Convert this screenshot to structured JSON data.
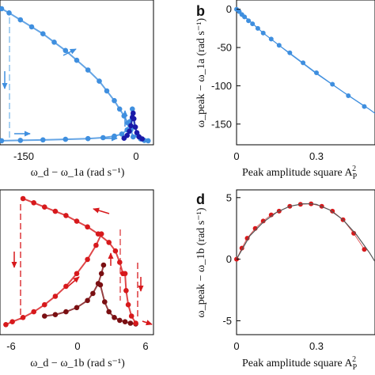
{
  "chart_data": [
    {
      "id": "a",
      "type": "line",
      "panel_label": "",
      "xlabel": "ω_d − ω_1a  (rad s⁻¹)",
      "ylabel": "",
      "xticks": [
        "-150",
        "0"
      ],
      "yticks": [],
      "xlim": [
        -175,
        25
      ],
      "ylim": [
        0,
        1
      ],
      "series": [
        {
          "color": "#3f8fdf",
          "role": "upper branch",
          "x": [
            -175,
            -165,
            -150,
            -135,
            -120,
            -105,
            -90,
            -75,
            -60,
            -45,
            -35,
            -25,
            -18,
            -12,
            -7,
            -3,
            0
          ],
          "y": [
            0.96,
            0.93,
            0.88,
            0.83,
            0.78,
            0.72,
            0.66,
            0.59,
            0.52,
            0.44,
            0.37,
            0.3,
            0.24,
            0.19,
            0.14,
            0.09,
            0.04
          ]
        },
        {
          "color": "#3f8fdf",
          "role": "lower branch",
          "x": [
            -175,
            -150,
            -120,
            -90,
            -60,
            -40,
            -25,
            -15,
            -8,
            -4,
            -1,
            2,
            6,
            10,
            15,
            20
          ],
          "y": [
            0.012,
            0.015,
            0.018,
            0.022,
            0.027,
            0.034,
            0.045,
            0.06,
            0.09,
            0.15,
            0.24,
            0.11,
            0.05,
            0.025,
            0.015,
            0.012
          ]
        },
        {
          "color": "#1a1aa8",
          "role": "resonance peak",
          "x": [
            -12,
            -8,
            -5,
            -3,
            -1,
            0,
            1,
            3,
            5,
            8,
            12
          ],
          "y": [
            0.03,
            0.05,
            0.08,
            0.12,
            0.18,
            0.21,
            0.17,
            0.11,
            0.07,
            0.04,
            0.025
          ]
        }
      ]
    },
    {
      "id": "b",
      "type": "scatter",
      "panel_label": "b",
      "xlabel": "Peak amplitude square A",
      "xlabel_sub": "P",
      "xlabel_sup": "2",
      "ylabel": "ω_peak − ω_1a  (rad s⁻¹)",
      "xticks": [
        "0",
        "0.3"
      ],
      "yticks": [
        "0",
        "-50",
        "-100",
        "-150"
      ],
      "xlim": [
        0,
        0.52
      ],
      "ylim": [
        -175,
        10
      ],
      "series": [
        {
          "color": "#3f8fdf",
          "role": "data",
          "x": [
            0,
            0.01,
            0.02,
            0.03,
            0.045,
            0.06,
            0.08,
            0.1,
            0.13,
            0.16,
            0.2,
            0.25,
            0.3,
            0.36,
            0.42,
            0.48
          ],
          "y": [
            0,
            -3,
            -7,
            -10,
            -15,
            -19,
            -25,
            -31,
            -39,
            -47,
            -57,
            -70,
            -83,
            -98,
            -113,
            -127
          ]
        },
        {
          "color": "#3f8fdf",
          "role": "fit",
          "x": [
            0,
            0.1,
            0.2,
            0.3,
            0.4,
            0.5,
            0.52
          ],
          "y": [
            0,
            -31,
            -58,
            -84,
            -108,
            -131,
            -136
          ]
        }
      ]
    },
    {
      "id": "c",
      "type": "line",
      "panel_label": "",
      "xlabel": "ω_d − ω_1b  (rad s⁻¹)",
      "ylabel": "",
      "xticks": [
        "-6",
        "0",
        "6"
      ],
      "yticks": [],
      "xlim": [
        -7,
        7
      ],
      "ylim": [
        0,
        1
      ],
      "series": [
        {
          "color": "#d7191c",
          "role": "upper branch",
          "x": [
            -5,
            -4,
            -3,
            -2,
            -1,
            0,
            1,
            2,
            3,
            3.6,
            4,
            4.3
          ],
          "y": [
            0.95,
            0.92,
            0.89,
            0.86,
            0.83,
            0.79,
            0.75,
            0.7,
            0.64,
            0.58,
            0.5,
            0.42
          ]
        },
        {
          "color": "#d7191c",
          "role": "lower branch",
          "x": [
            -6.6,
            -6,
            -5,
            -4,
            -3,
            -2,
            -1,
            0,
            1,
            1.8,
            2.3
          ],
          "y": [
            0.06,
            0.08,
            0.11,
            0.15,
            0.2,
            0.26,
            0.33,
            0.42,
            0.52,
            0.62,
            0.7
          ]
        },
        {
          "color": "#7a0f12",
          "role": "second branch",
          "x": [
            -3,
            -2,
            -1,
            0,
            1,
            1.5,
            2,
            2.3,
            2.5
          ],
          "y": [
            0.12,
            0.13,
            0.15,
            0.18,
            0.23,
            0.28,
            0.35,
            0.42,
            0.48
          ]
        },
        {
          "color": "#7a0f12",
          "role": "second branch lower",
          "x": [
            2.2,
            2.6,
            3,
            3.5,
            4,
            4.5,
            5,
            5.5
          ],
          "y": [
            0.34,
            0.22,
            0.15,
            0.11,
            0.09,
            0.08,
            0.07,
            0.065
          ]
        },
        {
          "color": "#d7191c",
          "role": "right branch",
          "x": [
            5.5,
            5.1,
            4.8,
            4.6,
            4.5
          ],
          "y": [
            0.07,
            0.12,
            0.2,
            0.3,
            0.42
          ]
        }
      ]
    },
    {
      "id": "d",
      "type": "scatter",
      "panel_label": "d",
      "xlabel": "Peak amplitude square A",
      "xlabel_sub": "P",
      "xlabel_sup": "2",
      "ylabel": "ω_peak − ω_1b  (rad s⁻¹)",
      "xticks": [
        "0",
        "0.3"
      ],
      "yticks": [
        "5",
        "0",
        "-5"
      ],
      "xlim": [
        0,
        0.52
      ],
      "ylim": [
        -6,
        5.5
      ],
      "series": [
        {
          "color": "#d7191c",
          "role": "data",
          "x": [
            0,
            0.02,
            0.04,
            0.07,
            0.1,
            0.13,
            0.16,
            0.2,
            0.24,
            0.28,
            0.32,
            0.36,
            0.4,
            0.44,
            0.48
          ],
          "y": [
            0,
            0.9,
            1.7,
            2.5,
            3.1,
            3.6,
            3.9,
            4.3,
            4.45,
            4.5,
            4.3,
            3.9,
            3.2,
            2.1,
            0.8
          ]
        },
        {
          "color": "#555555",
          "role": "fit",
          "x": [
            0,
            0.05,
            0.1,
            0.15,
            0.2,
            0.25,
            0.28,
            0.3,
            0.35,
            0.4,
            0.45,
            0.5,
            0.52
          ],
          "y": [
            0,
            1.9,
            3.0,
            3.8,
            4.3,
            4.5,
            4.5,
            4.45,
            4.0,
            3.2,
            2.0,
            0.5,
            -0.2
          ]
        }
      ]
    }
  ]
}
